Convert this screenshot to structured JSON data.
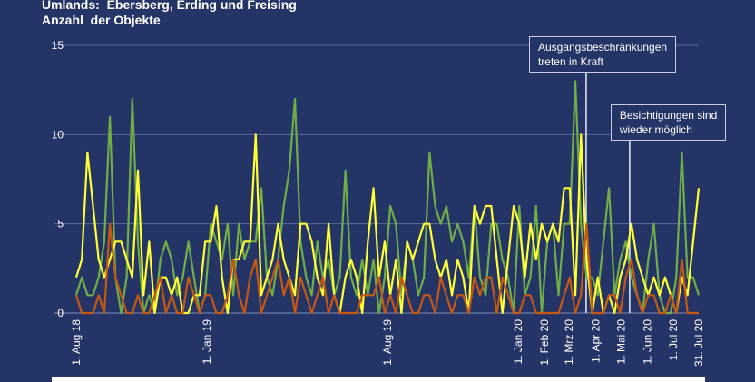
{
  "chart_data": {
    "type": "line",
    "title": "Umlands:  Ebersberg, Erding und Freising\nAnzahl  der Objekte",
    "xlabel": "",
    "ylabel": "",
    "ylim": [
      0,
      15
    ],
    "yticks": [
      "0",
      "5",
      "10",
      "15"
    ],
    "grid": true,
    "x_range": [
      "2018-08-01",
      "2020-07-31"
    ],
    "xticks": [
      {
        "label": "1. Aug 18",
        "date": "2018-08-01"
      },
      {
        "label": "1. Jan 19",
        "date": "2019-01-01"
      },
      {
        "label": "1. Aug 19",
        "date": "2019-08-01"
      },
      {
        "label": "1. Jan 20",
        "date": "2020-01-01"
      },
      {
        "label": "1. Feb 20",
        "date": "2020-02-01"
      },
      {
        "label": "1. Mrz 20",
        "date": "2020-03-01"
      },
      {
        "label": "1. Apr 20",
        "date": "2020-04-01"
      },
      {
        "label": "1. Mai 20",
        "date": "2020-05-01"
      },
      {
        "label": "1. Jun 20",
        "date": "2020-06-01"
      },
      {
        "label": "1. Jul 20",
        "date": "2020-07-01"
      },
      {
        "label": "31. Jul 20",
        "date": "2020-07-31"
      }
    ],
    "series": [
      {
        "color": "#70ad47",
        "values": [
          1,
          2,
          1,
          1,
          2,
          4,
          11,
          2,
          0,
          2,
          12,
          4,
          0,
          1,
          0,
          3,
          4,
          3,
          1,
          2,
          4,
          2,
          0,
          1,
          5,
          4,
          3,
          5,
          1,
          5,
          3,
          4,
          4,
          7,
          2,
          1,
          3,
          6,
          8,
          12,
          4,
          2,
          1,
          4,
          2,
          3,
          1,
          2,
          8,
          2,
          1,
          3,
          1,
          3,
          0,
          2,
          6,
          5,
          1,
          4,
          3,
          1,
          2,
          9,
          6,
          5,
          6,
          4,
          5,
          4,
          2,
          6,
          2,
          1,
          5,
          5,
          3,
          2,
          0,
          6,
          1,
          2,
          6,
          0,
          4,
          5,
          1,
          5,
          5,
          13,
          5,
          2,
          2,
          1,
          4,
          7,
          1,
          3,
          4,
          2,
          1,
          0,
          3,
          5,
          1,
          0,
          0,
          2,
          9,
          2,
          2,
          1
        ]
      },
      {
        "color": "#ffff33",
        "values": [
          2,
          3,
          9,
          6,
          3,
          2,
          3,
          4,
          4,
          3,
          2,
          8,
          1,
          4,
          0,
          2,
          2,
          1,
          2,
          0,
          0,
          1,
          1,
          4,
          4,
          6,
          2,
          0,
          3,
          3,
          4,
          4,
          10,
          1,
          2,
          3,
          5,
          3,
          2,
          1,
          5,
          5,
          4,
          2,
          1,
          5,
          1,
          0,
          2,
          3,
          2,
          0,
          4,
          7,
          2,
          4,
          1,
          3,
          0,
          4,
          3,
          4,
          5,
          5,
          3,
          2,
          3,
          1,
          3,
          2,
          0,
          6,
          5,
          6,
          6,
          3,
          0,
          3,
          6,
          5,
          2,
          5,
          3,
          5,
          4,
          5,
          4,
          7,
          7,
          1,
          10,
          3,
          0,
          2,
          0,
          1,
          0,
          2,
          3,
          5,
          3,
          2,
          1,
          2,
          1,
          2,
          1,
          0,
          2,
          1,
          4,
          7
        ]
      },
      {
        "color": "#c65911",
        "values": [
          1,
          0,
          0,
          0,
          1,
          0,
          5,
          2,
          1,
          0,
          0,
          1,
          0,
          0,
          1,
          2,
          0,
          1,
          0,
          0,
          2,
          1,
          0,
          1,
          1,
          0,
          0,
          1,
          3,
          1,
          0,
          2,
          3,
          0,
          1,
          2,
          3,
          1,
          2,
          0,
          2,
          1,
          0,
          1,
          2,
          0,
          1,
          0,
          0,
          0,
          0,
          1,
          1,
          1,
          2,
          0,
          1,
          0,
          2,
          1,
          0,
          0,
          1,
          1,
          0,
          2,
          1,
          0,
          1,
          1,
          0,
          2,
          1,
          2,
          2,
          0,
          2,
          1,
          0,
          0,
          1,
          1,
          0,
          0,
          0,
          0,
          0,
          1,
          2,
          0,
          1,
          5,
          0,
          0,
          0,
          1,
          1,
          0,
          2,
          3,
          1,
          0,
          1,
          1,
          0,
          0,
          1,
          0,
          3,
          0,
          0,
          0
        ]
      }
    ],
    "annotations": [
      {
        "text": "Ausgangsbeschränkungen\ntreten in Kraft",
        "date": "2020-03-21"
      },
      {
        "text": "Besichtigungen sind\nwieder möglich",
        "date": "2020-05-11"
      }
    ]
  }
}
